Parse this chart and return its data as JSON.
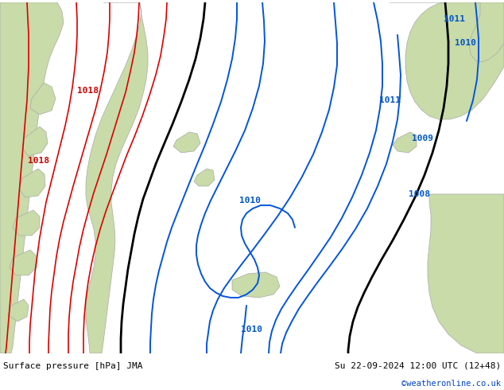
{
  "title_left": "Surface pressure [hPa] JMA",
  "title_right": "Su 22-09-2024 12:00 UTC (12+48)",
  "title_right2": "©weatheronline.co.uk",
  "fig_width": 6.34,
  "fig_height": 4.9,
  "dpi": 100,
  "sea_color": "#dce8f0",
  "land_color": "#c8dba8",
  "land_edge_color": "#aaaaaa",
  "contour_red": "#dd0000",
  "contour_black": "#000000",
  "contour_blue": "#0055dd",
  "bottom_bar_color": "#ffffff",
  "label_red": "#cc0000",
  "label_blue": "#0055cc",
  "label_black": "#000000"
}
